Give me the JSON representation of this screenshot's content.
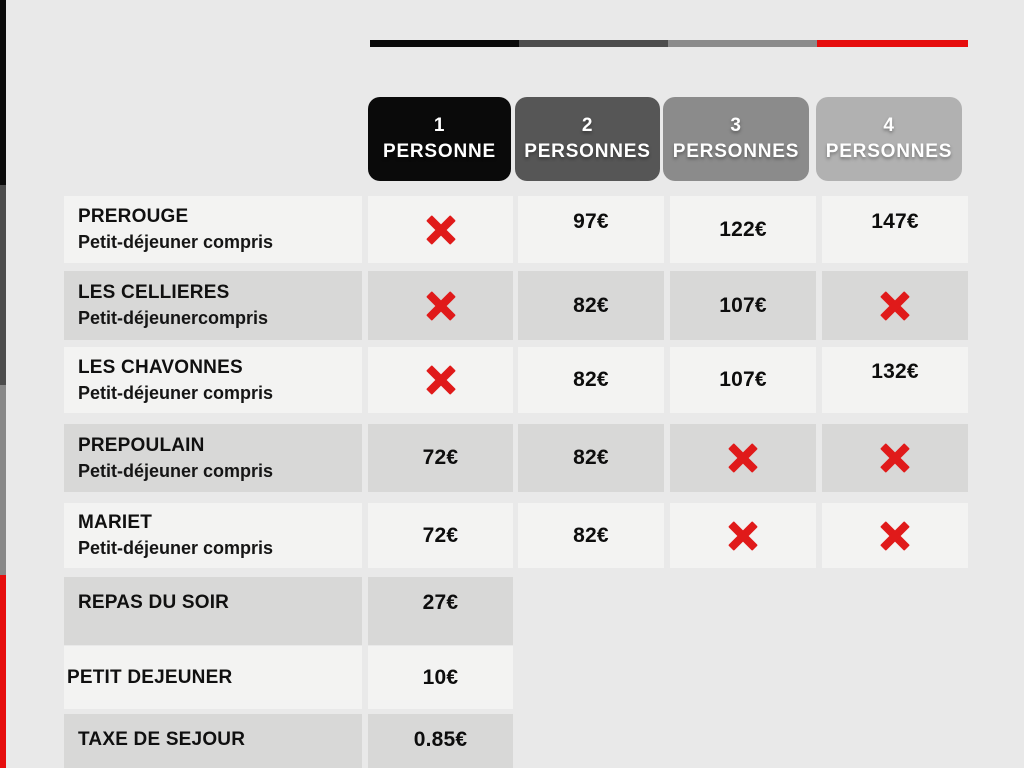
{
  "palette": {
    "background": "#e9e9e9",
    "cell_light": "#f3f3f2",
    "cell_dark": "#d8d8d7",
    "black": "#0a0a0a",
    "gray_dark": "#565656",
    "gray_mid": "#8b8b8b",
    "gray_light": "#b1b1b1",
    "accent_red": "#e60d0d",
    "cross_red": "#e01a1a"
  },
  "chart_data": {
    "type": "table",
    "columns": [
      {
        "line1": "1",
        "line2": "PERSONNE"
      },
      {
        "line1": "2",
        "line2": "PERSONNES"
      },
      {
        "line1": "3",
        "line2": "PERSONNES"
      },
      {
        "line1": "4",
        "line2": "PERSONNES"
      }
    ],
    "rooms": [
      {
        "name": "PREROUGE",
        "subtitle": "Petit-déjeuner compris",
        "values": [
          "X",
          "97€",
          "122€",
          "147€"
        ]
      },
      {
        "name": "LES CELLIERES",
        "subtitle": "Petit-déjeunercompris",
        "values": [
          "X",
          "82€",
          "107€",
          "X"
        ]
      },
      {
        "name": "LES CHAVONNES",
        "subtitle": "Petit-déjeuner compris",
        "values": [
          "X",
          "82€",
          "107€",
          "132€"
        ]
      },
      {
        "name": "PREPOULAIN",
        "subtitle": "Petit-déjeuner compris",
        "values": [
          "72€",
          "82€",
          "X",
          "X"
        ]
      },
      {
        "name": "MARIET",
        "subtitle": "Petit-déjeuner compris",
        "values": [
          "72€",
          "82€",
          "X",
          "X"
        ]
      }
    ],
    "extras": [
      {
        "name": "REPAS DU SOIR",
        "value": "27€"
      },
      {
        "name": "PETIT DEJEUNER",
        "value": "10€"
      },
      {
        "name": "TAXE DE SEJOUR",
        "value": "0.85€"
      }
    ]
  }
}
